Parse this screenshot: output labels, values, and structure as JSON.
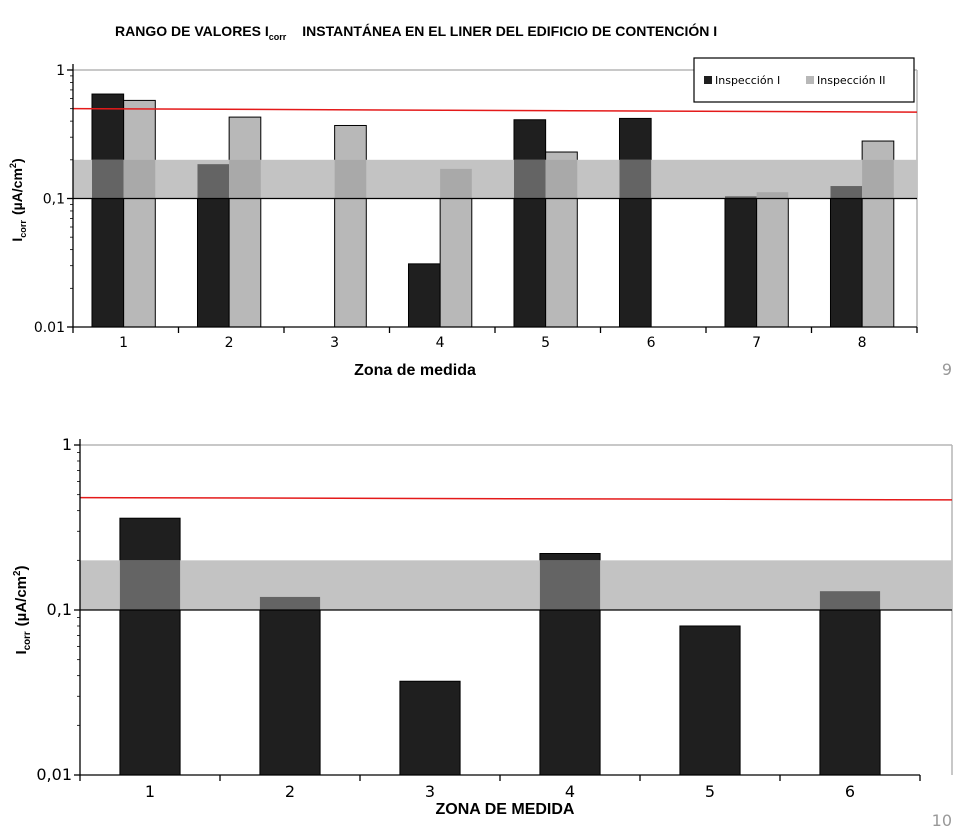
{
  "title": {
    "prefix": "RANGO DE VALORES I",
    "sub": "corr",
    "rest": "INSTANTÁNEA EN  EL LINER  DEL EDIFICIO DE CONTENCIÓN I"
  },
  "colors": {
    "series_dark": "#1f1f1f",
    "series_light": "#b8b8b8",
    "band": "#c3c3c3",
    "overlap": "#646464",
    "threshold_line": "#e41a1a"
  },
  "chart_data": [
    {
      "type": "bar",
      "scale": "log",
      "page_number": "9",
      "ylim": [
        0.01,
        1
      ],
      "yticks": [
        {
          "value": 1,
          "label": "1"
        },
        {
          "value": 0.1,
          "label": "0,1"
        },
        {
          "value": 0.01,
          "label": "0.01"
        }
      ],
      "ylabel_main": "I",
      "ylabel_sub": "corr",
      "ylabel_unit": "(µA/cm",
      "ylabel_sup": "2",
      "ylabel_close": ")",
      "xlabel": "Zona  de medida",
      "categories": [
        "1",
        "2",
        "3",
        "4",
        "5",
        "6",
        "7",
        "8"
      ],
      "series": [
        {
          "name": "Inspección I",
          "values": [
            0.65,
            0.185,
            null,
            0.031,
            0.41,
            0.42,
            0.104,
            0.125
          ]
        },
        {
          "name": "Inspección II",
          "values": [
            0.58,
            0.43,
            0.37,
            0.17,
            0.23,
            null,
            0.112,
            0.28
          ]
        }
      ],
      "legend_position": "top-right",
      "band": [
        0.1,
        0.2
      ],
      "reference_line": [
        0.5,
        0.47
      ]
    },
    {
      "type": "bar",
      "scale": "log",
      "page_number": "10",
      "ylim": [
        0.01,
        1
      ],
      "yticks": [
        {
          "value": 1,
          "label": "1"
        },
        {
          "value": 0.1,
          "label": "0,1"
        },
        {
          "value": 0.01,
          "label": "0,01"
        }
      ],
      "ylabel_main": "I",
      "ylabel_sub": "corr",
      "ylabel_unit": "(µA/cm",
      "ylabel_sup": "2",
      "ylabel_close": ")",
      "xlabel": "ZONA DE MEDIDA",
      "categories": [
        "1",
        "2",
        "3",
        "4",
        "5",
        "6"
      ],
      "series": [
        {
          "values": [
            0.36,
            0.12,
            0.037,
            0.22,
            0.08,
            0.13
          ]
        }
      ],
      "band": [
        0.1,
        0.2
      ],
      "reference_line": [
        0.48,
        0.465
      ]
    }
  ]
}
